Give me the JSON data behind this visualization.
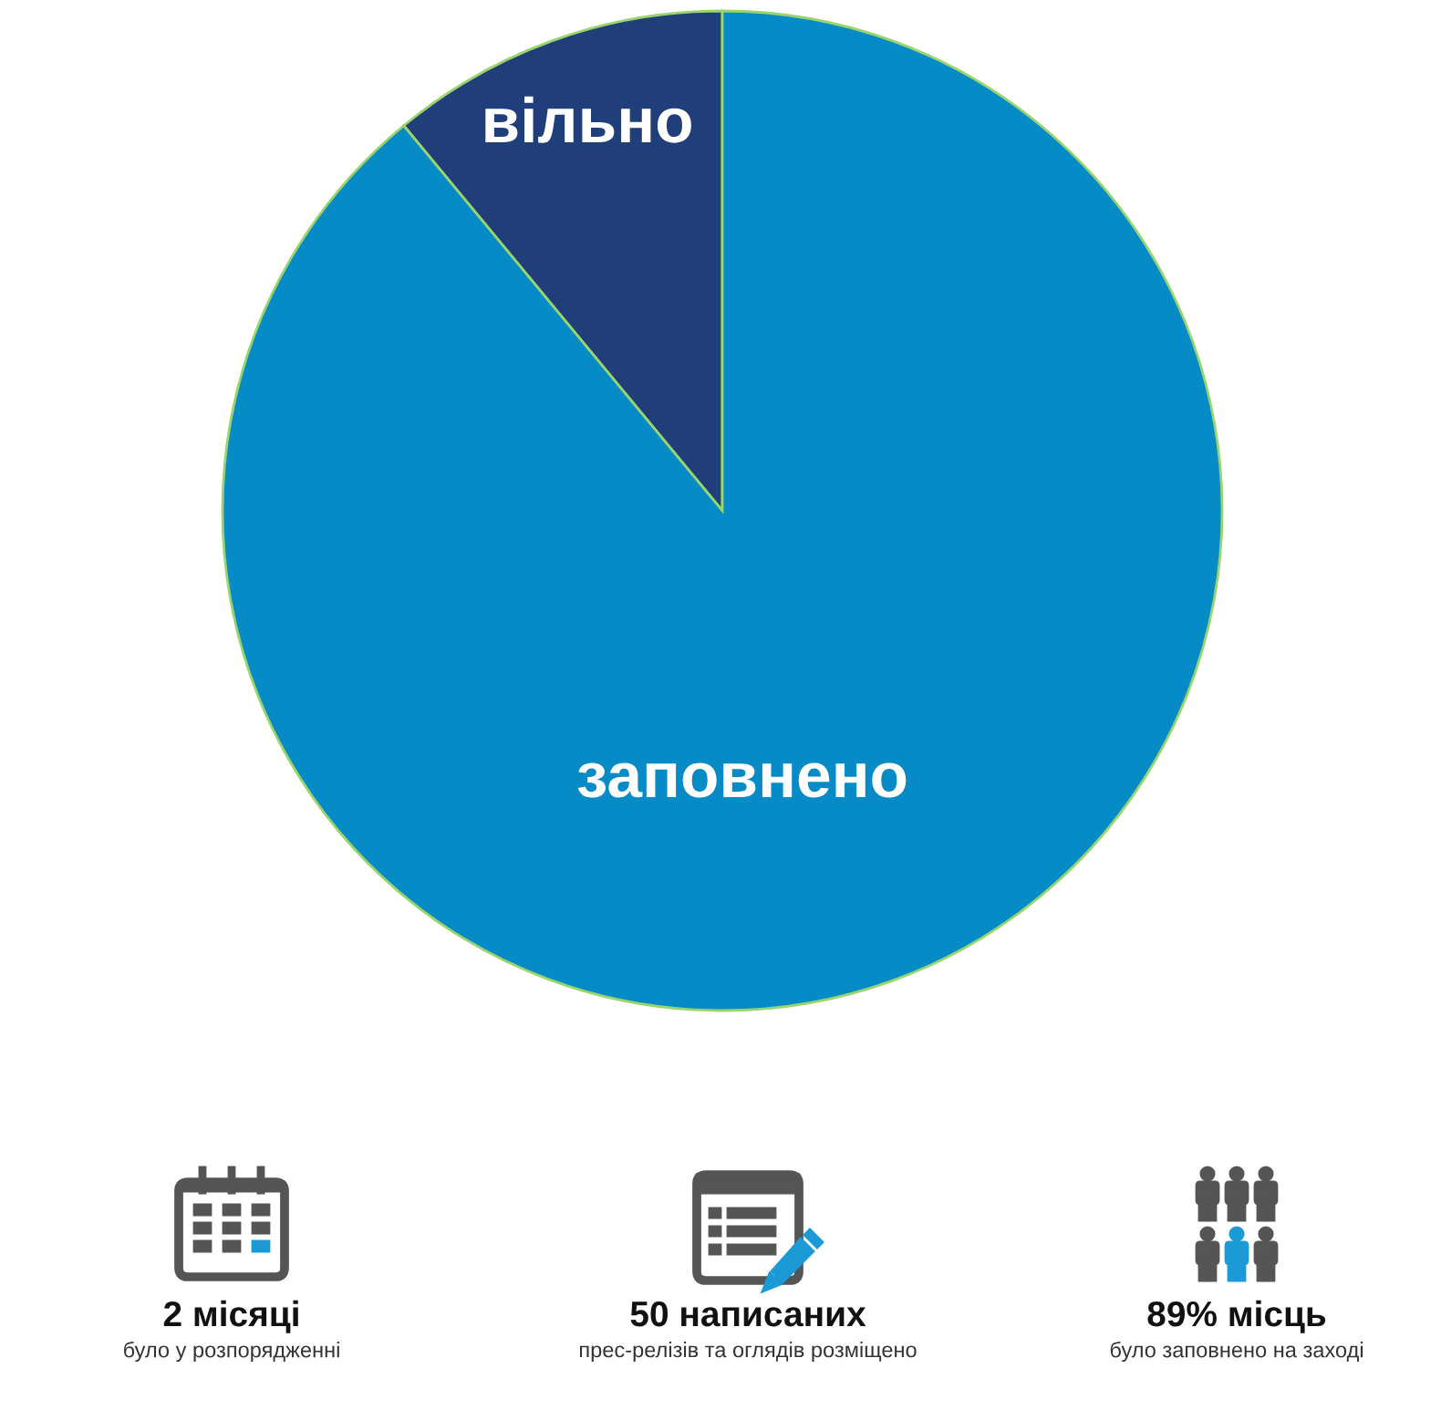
{
  "chart_data": [
    {
      "type": "pie",
      "categories": [
        "вільно",
        "заповнено"
      ],
      "values": [
        11,
        89
      ],
      "colors": [
        "#1f3e7a",
        "#068bc6"
      ]
    },
    {
      "type": "other",
      "annotations": [
        "2 місяці",
        "було у розпорядженні",
        "50 написаних",
        "прес-релізів та оглядів розміщено",
        "89% місць",
        "було заповнено на заході"
      ]
    }
  ]
}
